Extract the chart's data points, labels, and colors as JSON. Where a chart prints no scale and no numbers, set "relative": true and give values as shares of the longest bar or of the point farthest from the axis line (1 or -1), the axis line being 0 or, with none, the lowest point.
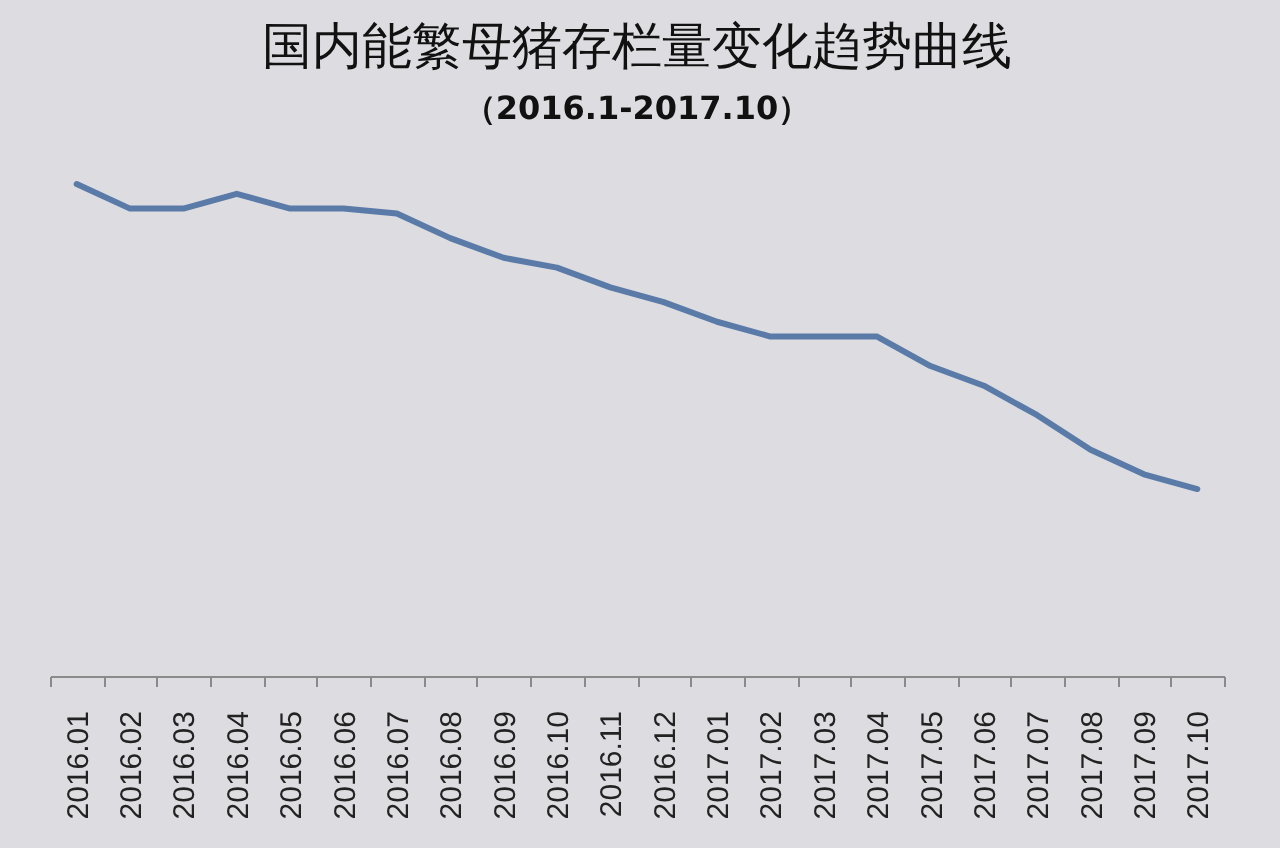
{
  "chart_data": {
    "type": "line",
    "title": "国内能繁母猪存栏量变化趋势曲线",
    "subtitle": "（2016.1-2017.10）",
    "categories": [
      "2016.01",
      "2016.02",
      "2016.03",
      "2016.04",
      "2016.05",
      "2016.06",
      "2016.07",
      "2016.08",
      "2016.09",
      "2016.10",
      "2016.11",
      "2016.12",
      "2017.01",
      "2017.02",
      "2017.03",
      "2017.04",
      "2017.05",
      "2017.06",
      "2017.07",
      "2017.08",
      "2017.09",
      "2017.10"
    ],
    "series": [
      {
        "color": "#5a7ba8",
        "values": [
          1,
          0.95,
          0.95,
          0.98,
          0.95,
          0.95,
          0.94,
          0.89,
          0.85,
          0.83,
          0.79,
          0.76,
          0.72,
          0.69,
          0.69,
          0.69,
          0.63,
          0.59,
          0.53,
          0.46,
          0.41,
          0.38
        ]
      }
    ],
    "relative": true
  }
}
